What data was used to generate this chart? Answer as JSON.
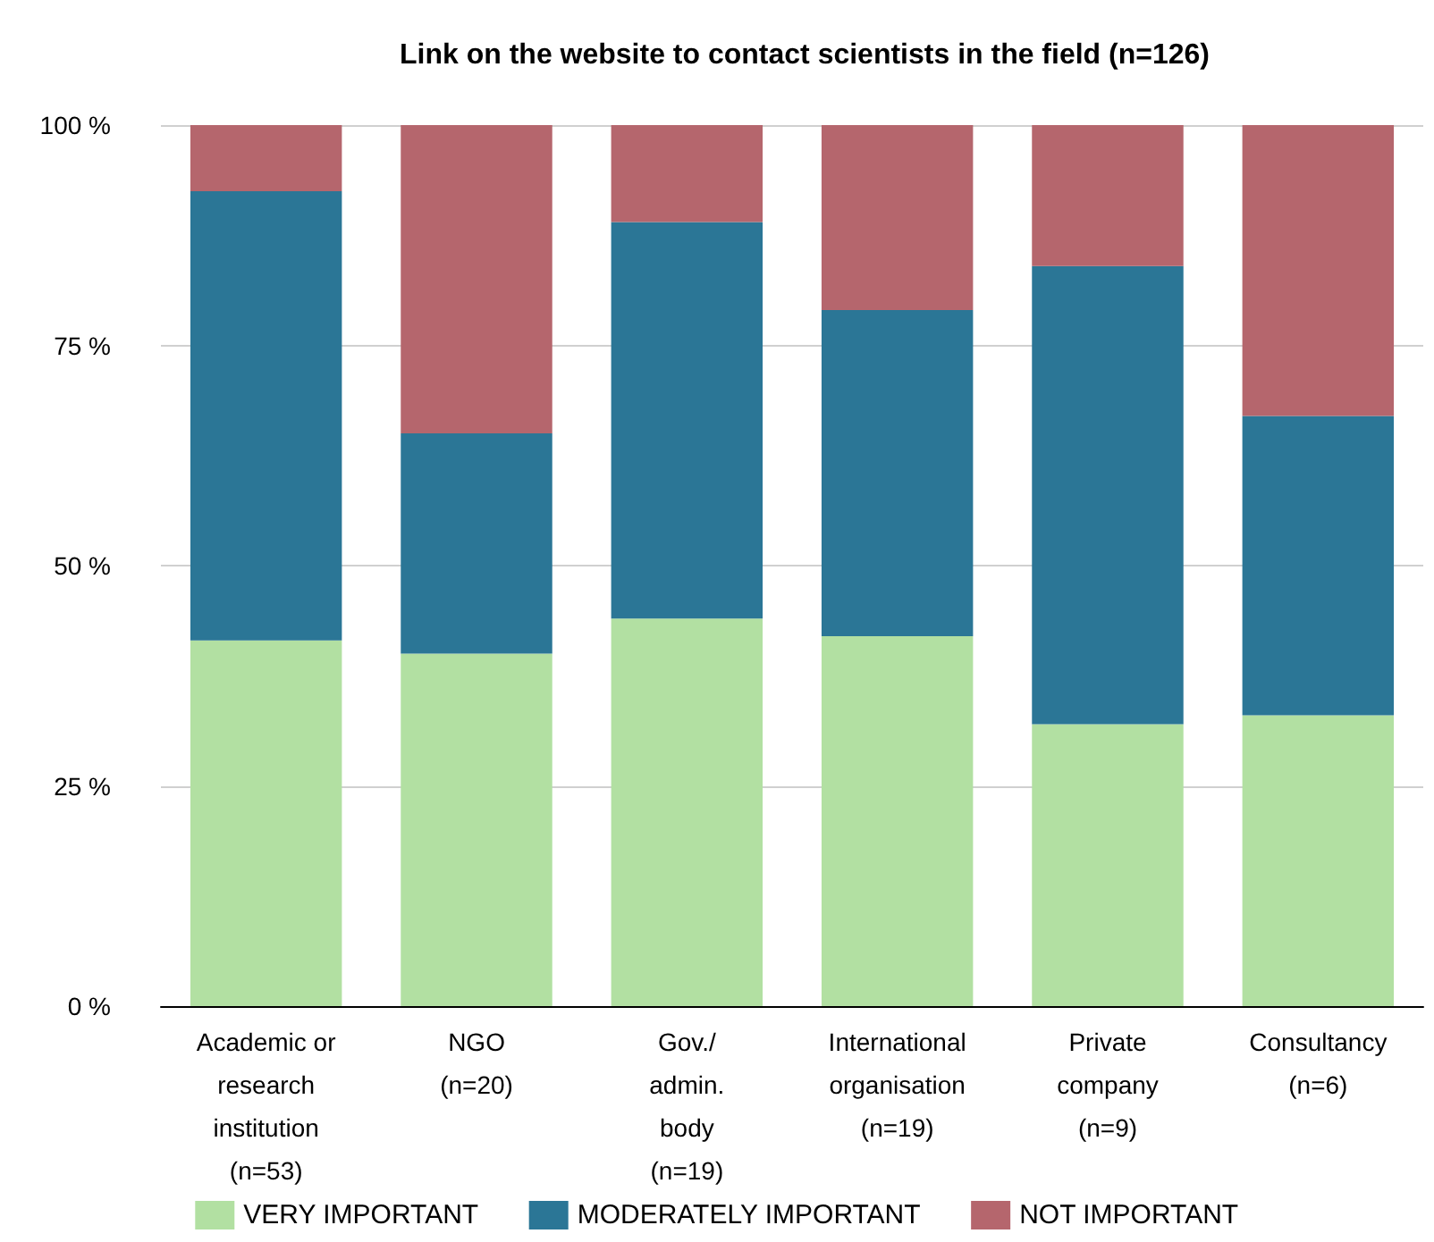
{
  "chart_data": {
    "type": "bar",
    "title": "Link on the website to contact scientists in the field (n=126)",
    "categories": [
      "Academic or\nresearch\ninstitution\n(n=53)",
      "NGO\n(n=20)",
      "Gov./\nadmin.\nbody\n(n=19)",
      "International\norganisation\n(n=19)",
      "Private\ncompany\n(n=9)",
      "Consultancy\n(n=6)"
    ],
    "series": [
      {
        "name": "VERY IMPORTANT",
        "color": "#b2e0a2",
        "values": [
          41.5,
          40,
          44,
          42,
          32,
          33
        ]
      },
      {
        "name": "MODERATELY IMPORTANT",
        "color": "#2b7696",
        "values": [
          51,
          25,
          45,
          37,
          52,
          34
        ]
      },
      {
        "name": "NOT IMPORTANT",
        "color": "#b5666d",
        "values": [
          7.5,
          35,
          11,
          21,
          16,
          33
        ]
      }
    ],
    "stacked": true,
    "ylim": [
      0,
      100
    ],
    "yticks": [
      {
        "value": 0,
        "label": "0 %"
      },
      {
        "value": 25,
        "label": "25 %"
      },
      {
        "value": 50,
        "label": "50 %"
      },
      {
        "value": 75,
        "label": "75 %"
      },
      {
        "value": 100,
        "label": "100 %"
      }
    ],
    "grid": "y",
    "legend": "bottom"
  }
}
